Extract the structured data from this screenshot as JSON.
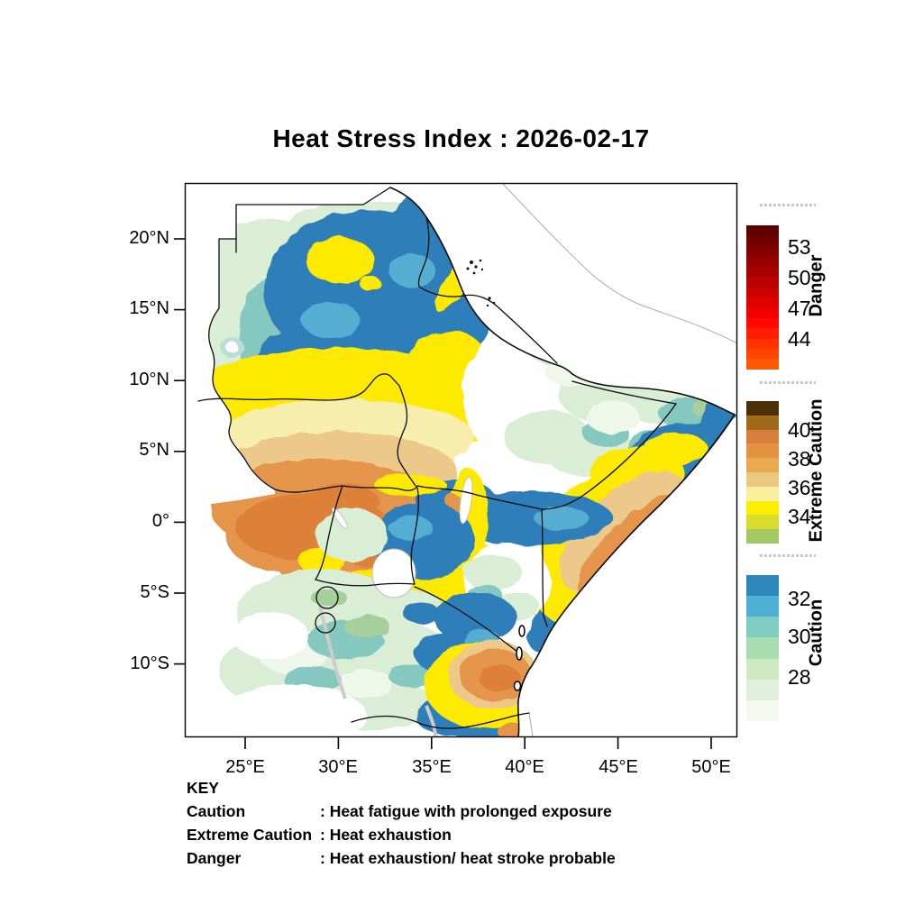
{
  "title": "Heat Stress Index : 2026-02-17",
  "axes": {
    "lat_ticks": [
      "20°N",
      "15°N",
      "10°N",
      "5°N",
      "0°",
      "5°S",
      "10°S"
    ],
    "lon_ticks": [
      "25°E",
      "30°E",
      "35°E",
      "40°E",
      "45°E",
      "50°E"
    ],
    "lat_range_visible": "10°S – 20°N",
    "lon_range_visible": "25°E – 50°E"
  },
  "colorbars": {
    "danger": {
      "label": "Danger",
      "ticks": [
        "53",
        "50",
        "47",
        "44"
      ],
      "colors": [
        "#5e0000",
        "#710000",
        "#840000",
        "#960000",
        "#a80000",
        "#bb0000",
        "#cd0000",
        "#e00000",
        "#f20000",
        "#ff0800",
        "#ff1f00",
        "#ff3300",
        "#ff4600",
        "#ff5900"
      ]
    },
    "extreme_caution": {
      "label": "Extreme Caution",
      "ticks": [
        "40",
        "38",
        "36",
        "34"
      ],
      "colors": [
        "#4a2f07",
        "#a06a1c",
        "#d97e3d",
        "#e4933f",
        "#eaa94f",
        "#ecc983",
        "#f9ef9e",
        "#fdee00",
        "#d8dc2a",
        "#a2c964"
      ]
    },
    "caution": {
      "label": "Caution",
      "ticks": [
        "32",
        "30",
        "28"
      ],
      "colors": [
        "#2d87bd",
        "#4fb0d5",
        "#7fccc2",
        "#a9dcb0",
        "#cfe9c3",
        "#e0f0dc",
        "#f3f9ef"
      ]
    }
  },
  "key": {
    "heading": "KEY",
    "entries": [
      {
        "term": "Caution",
        "desc": ": Heat fatigue with prolonged exposure"
      },
      {
        "term": "Extreme Caution",
        "desc": ": Heat exhaustion"
      },
      {
        "term": "Danger",
        "desc": ": Heat exhaustion/ heat stroke probable"
      }
    ]
  }
}
